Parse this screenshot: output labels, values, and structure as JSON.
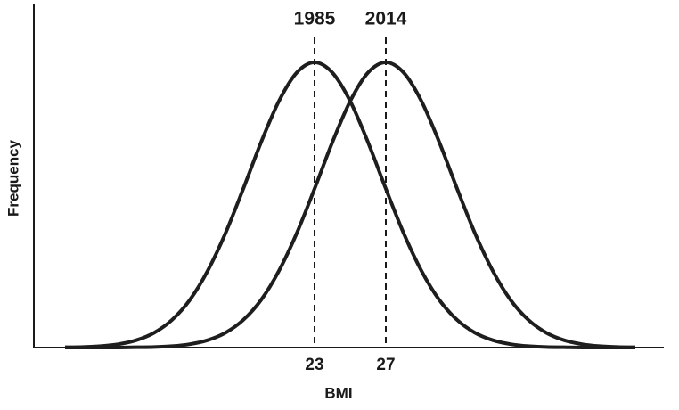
{
  "chart_data": {
    "type": "line",
    "x_label": "BMI",
    "y_label": "Frequency",
    "x": [
      9,
      10,
      11,
      12,
      13,
      14,
      15,
      16,
      17,
      18,
      19,
      20,
      21,
      22,
      23,
      24,
      25,
      26,
      27,
      28,
      29,
      30,
      31,
      32,
      33,
      34,
      35,
      36,
      37,
      38,
      39,
      40,
      41
    ],
    "series": [
      {
        "name": "1985",
        "color": "#1e1e1e",
        "values": [
          0.001,
          0.002,
          0.005,
          0.012,
          0.026,
          0.052,
          0.097,
          0.167,
          0.269,
          0.401,
          0.557,
          0.72,
          0.864,
          0.964,
          1,
          0.964,
          0.864,
          0.72,
          0.557,
          0.401,
          0.269,
          0.167,
          0.097,
          0.052,
          0.026,
          0.012,
          0.005,
          0.002,
          0.001,
          0,
          0,
          0,
          0
        ]
      },
      {
        "name": "2014",
        "color": "#1e1e1e",
        "values": [
          0,
          0,
          0,
          0,
          0.001,
          0.002,
          0.005,
          0.012,
          0.026,
          0.052,
          0.097,
          0.167,
          0.269,
          0.401,
          0.557,
          0.72,
          0.864,
          0.964,
          1,
          0.964,
          0.864,
          0.72,
          0.557,
          0.401,
          0.269,
          0.167,
          0.097,
          0.052,
          0.026,
          0.012,
          0.005,
          0.002,
          0.001
        ]
      }
    ],
    "xlim": [
      7.25,
      42.6
    ],
    "xticks": [
      23,
      27
    ],
    "ylim": [
      0,
      1.1
    ],
    "grid": false
  }
}
